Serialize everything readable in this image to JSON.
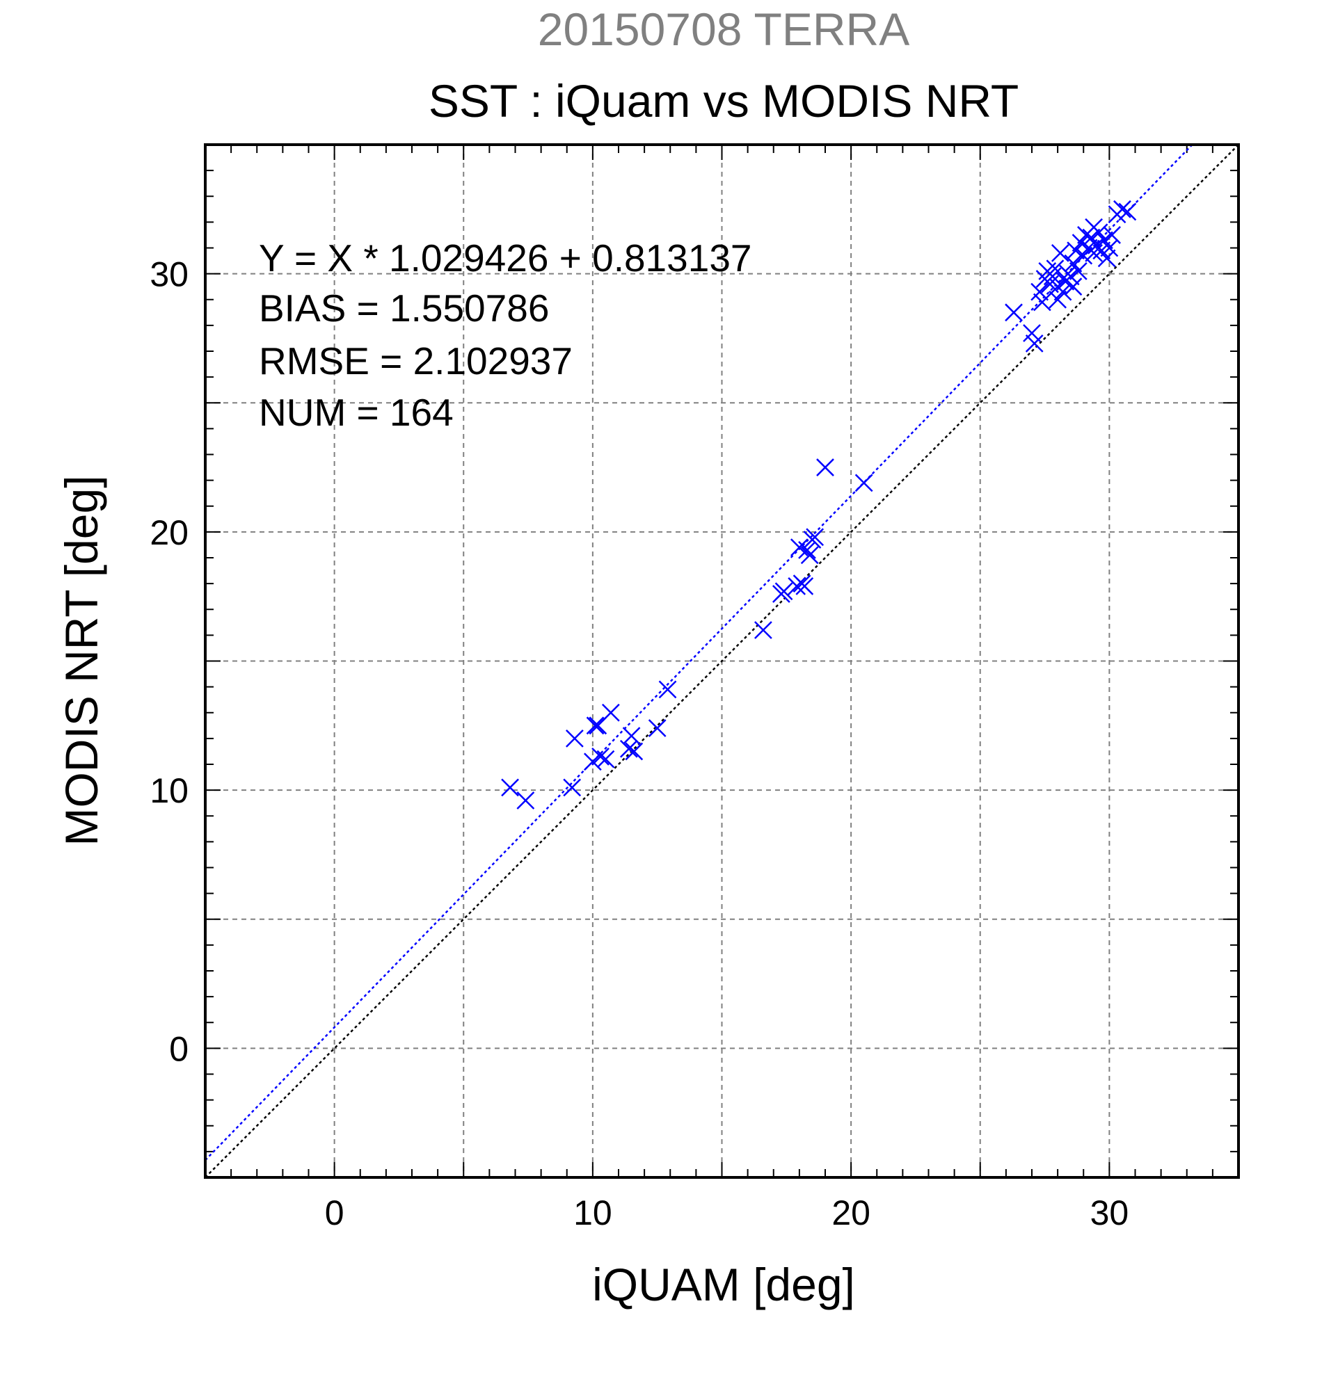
{
  "chart_data": {
    "type": "scatter",
    "date_title": "20150708 TERRA",
    "title": "SST : iQuam vs MODIS NRT",
    "xlabel": "iQUAM [deg]",
    "ylabel": "MODIS NRT [deg]",
    "xlim": [
      -5,
      35
    ],
    "ylim": [
      -5,
      35
    ],
    "xticks": [
      0,
      10,
      20,
      30
    ],
    "yticks": [
      0,
      10,
      20,
      30
    ],
    "grid": true,
    "statistics": [
      "Y = X * 1.029426 + 0.813137",
      "BIAS = 1.550786",
      "RMSE = 2.102937",
      "NUM = 164"
    ],
    "regression": {
      "slope": 1.029426,
      "intercept": 0.813137
    },
    "colors": {
      "points": "#0000ff",
      "regression_line": "#0000ff",
      "identity_line": "#000000",
      "grid": "#808080",
      "date_title": "#808080"
    },
    "series": [
      {
        "marker": "x",
        "points": [
          [
            6.8,
            10.1
          ],
          [
            7.4,
            9.6
          ],
          [
            9.2,
            10.1
          ],
          [
            9.3,
            12.0
          ],
          [
            10.1,
            12.5
          ],
          [
            10.2,
            12.5
          ],
          [
            10.0,
            11.1
          ],
          [
            10.3,
            11.3
          ],
          [
            10.5,
            11.2
          ],
          [
            10.7,
            13.0
          ],
          [
            11.4,
            11.6
          ],
          [
            11.6,
            11.5
          ],
          [
            11.5,
            12.1
          ],
          [
            12.5,
            12.4
          ],
          [
            12.9,
            13.9
          ],
          [
            16.6,
            16.2
          ],
          [
            17.3,
            17.6
          ],
          [
            17.4,
            17.7
          ],
          [
            17.9,
            17.9
          ],
          [
            18.1,
            18.0
          ],
          [
            18.2,
            17.9
          ],
          [
            18.0,
            19.4
          ],
          [
            18.3,
            19.3
          ],
          [
            18.4,
            19.1
          ],
          [
            18.5,
            19.7
          ],
          [
            18.6,
            19.8
          ],
          [
            19.0,
            22.5
          ],
          [
            20.5,
            21.9
          ],
          [
            26.3,
            28.5
          ],
          [
            27.0,
            27.7
          ],
          [
            27.1,
            27.3
          ],
          [
            27.3,
            29.3
          ],
          [
            27.4,
            28.9
          ],
          [
            27.5,
            29.8
          ],
          [
            27.6,
            30.1
          ],
          [
            27.7,
            29.6
          ],
          [
            27.8,
            29.9
          ],
          [
            27.9,
            30.2
          ],
          [
            28.0,
            29.0
          ],
          [
            28.0,
            29.5
          ],
          [
            28.1,
            30.8
          ],
          [
            28.2,
            29.3
          ],
          [
            28.3,
            29.7
          ],
          [
            28.4,
            30.0
          ],
          [
            28.5,
            29.9
          ],
          [
            28.6,
            30.4
          ],
          [
            28.7,
            30.9
          ],
          [
            28.8,
            30.1
          ],
          [
            28.9,
            31.2
          ],
          [
            29.0,
            30.7
          ],
          [
            29.1,
            31.5
          ],
          [
            29.2,
            31.0
          ],
          [
            29.3,
            31.4
          ],
          [
            29.4,
            31.8
          ],
          [
            29.5,
            31.1
          ],
          [
            29.6,
            31.6
          ],
          [
            29.7,
            30.9
          ],
          [
            29.8,
            31.3
          ],
          [
            29.9,
            30.6
          ],
          [
            30.0,
            31.0
          ],
          [
            30.1,
            31.5
          ],
          [
            30.3,
            32.3
          ],
          [
            30.5,
            32.5
          ],
          [
            30.7,
            32.4
          ],
          [
            29.4,
            30.8
          ],
          [
            28.6,
            29.5
          ]
        ]
      }
    ]
  }
}
